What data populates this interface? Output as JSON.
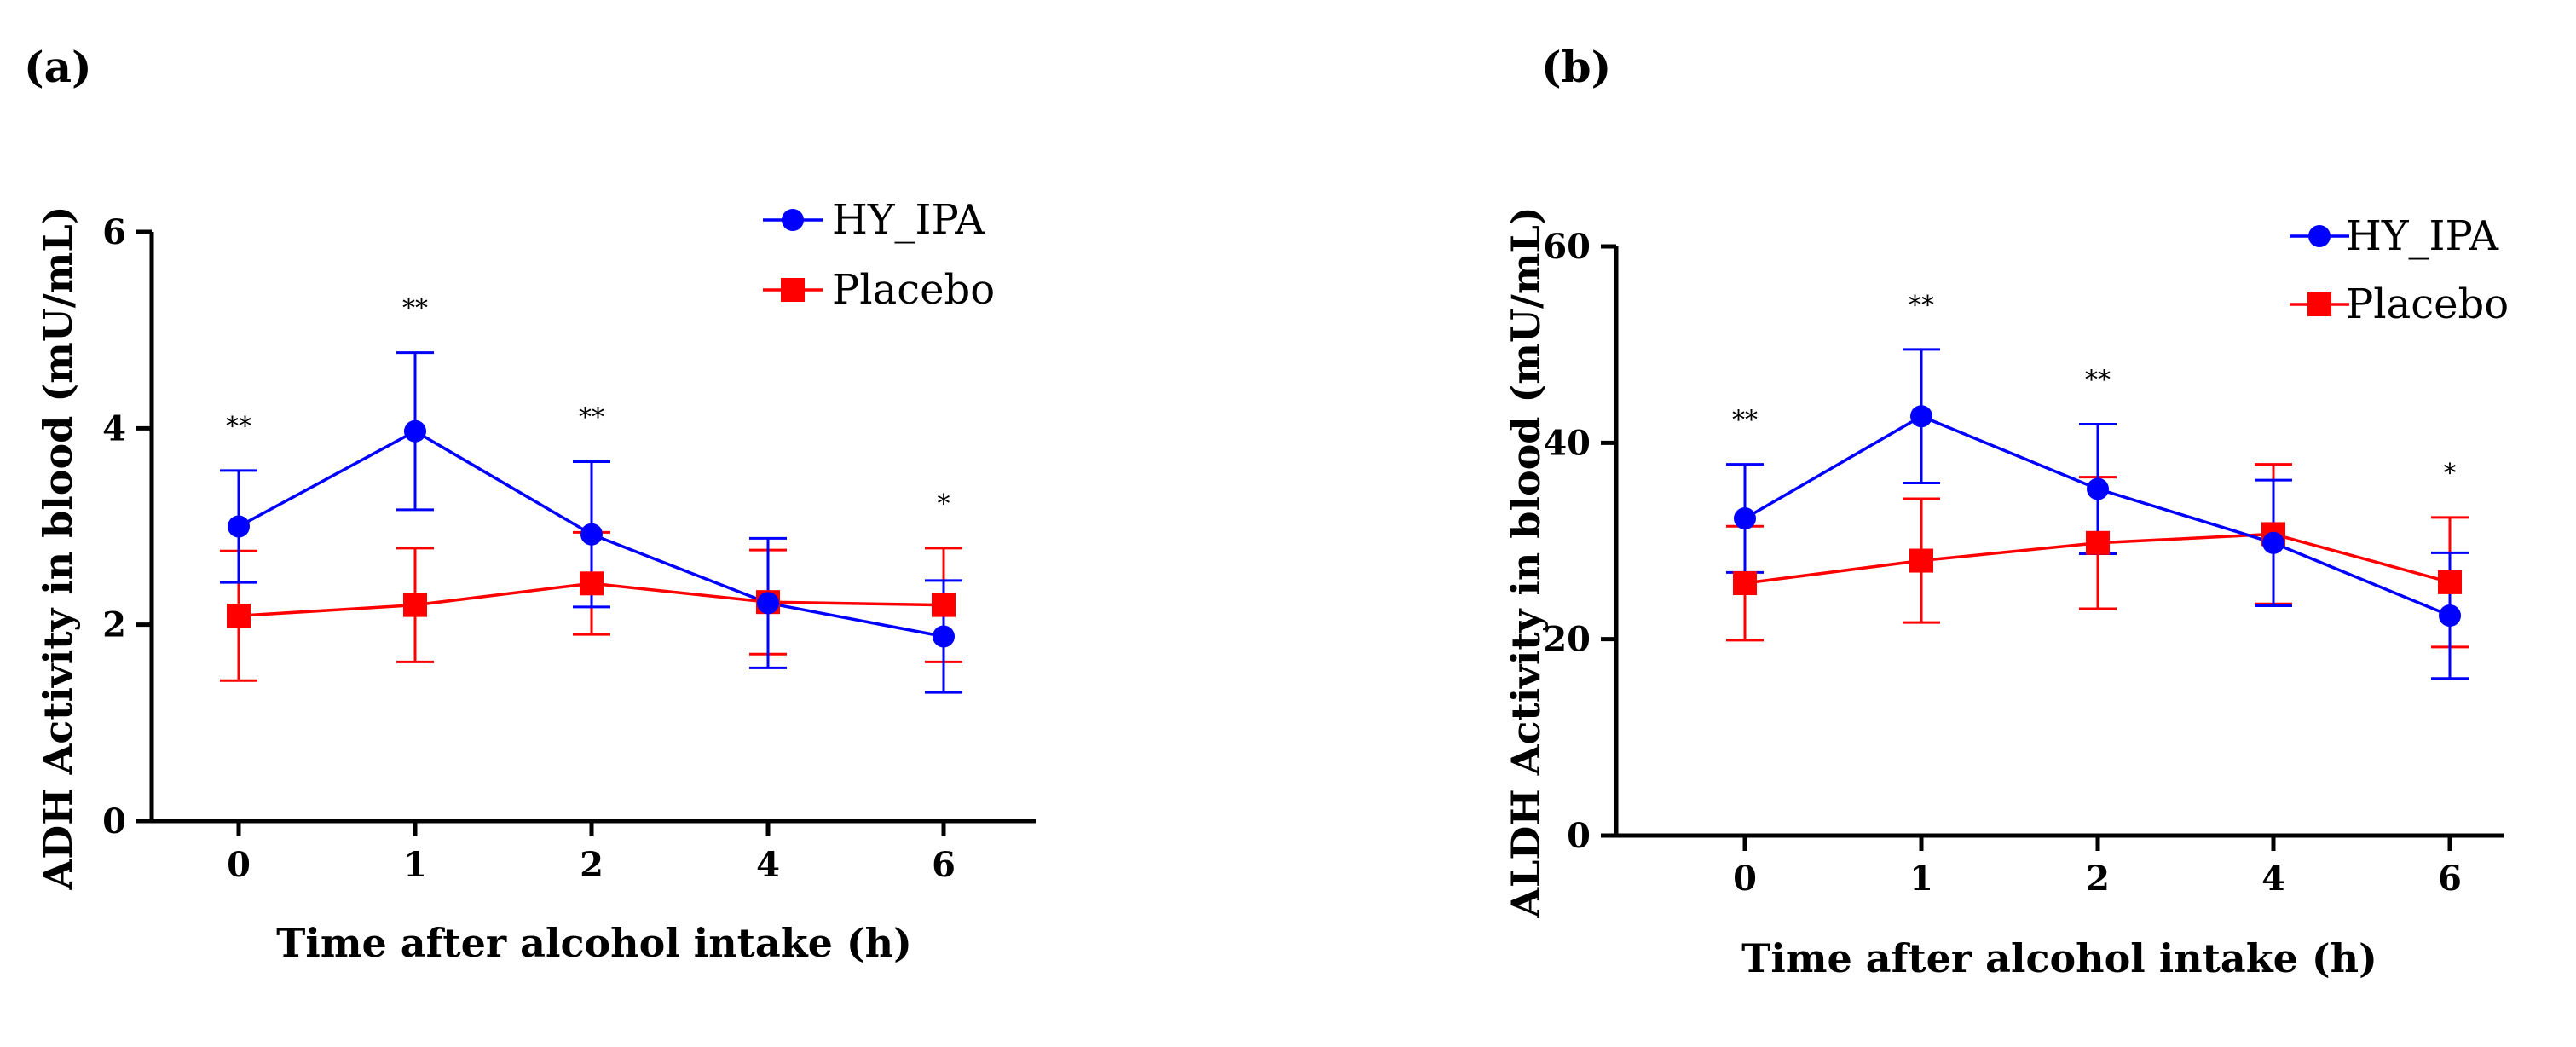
{
  "chart_data": [
    {
      "type": "line",
      "panel_label": "(a)",
      "xlabel": "Time after alcohol intake (h)",
      "ylabel": "ADH Activity in blood (mU/mL)",
      "categories": [
        "0",
        "1",
        "2",
        "4",
        "6"
      ],
      "ylim": [
        0,
        6
      ],
      "yticks": [
        "0",
        "2",
        "4",
        "6"
      ],
      "legend_position": "top-right",
      "grid": false,
      "series": [
        {
          "name": "HY_IPA",
          "color": "#0000ff",
          "marker": "circle",
          "values": [
            3.0,
            3.97,
            2.92,
            2.22,
            1.88
          ],
          "errors": [
            0.57,
            0.8,
            0.74,
            0.66,
            0.57
          ]
        },
        {
          "name": "Placebo",
          "color": "#ff0000",
          "marker": "square",
          "values": [
            2.09,
            2.2,
            2.42,
            2.23,
            2.2
          ],
          "errors": [
            0.66,
            0.58,
            0.52,
            0.53,
            0.58
          ]
        }
      ],
      "annotations": [
        "**",
        "**",
        "**",
        "",
        "*"
      ]
    },
    {
      "type": "line",
      "panel_label": "(b)",
      "xlabel": "Time after alcohol intake (h)",
      "ylabel": "ALDH Activity in blood (mU/mL)",
      "categories": [
        "0",
        "1",
        "2",
        "4",
        "6"
      ],
      "ylim": [
        0,
        60
      ],
      "yticks": [
        "0",
        "20",
        "40",
        "60"
      ],
      "legend_position": "top-right",
      "grid": false,
      "series": [
        {
          "name": "HY_IPA",
          "color": "#0000ff",
          "marker": "circle",
          "values": [
            32.3,
            42.7,
            35.3,
            29.8,
            22.4
          ],
          "errors": [
            5.5,
            6.8,
            6.6,
            6.4,
            6.4
          ]
        },
        {
          "name": "Placebo",
          "color": "#ff0000",
          "marker": "square",
          "values": [
            25.7,
            28.0,
            29.8,
            30.7,
            25.8
          ],
          "errors": [
            5.8,
            6.3,
            6.7,
            7.1,
            6.6
          ]
        }
      ],
      "annotations": [
        "**",
        "**",
        "**",
        "",
        "*"
      ]
    }
  ]
}
